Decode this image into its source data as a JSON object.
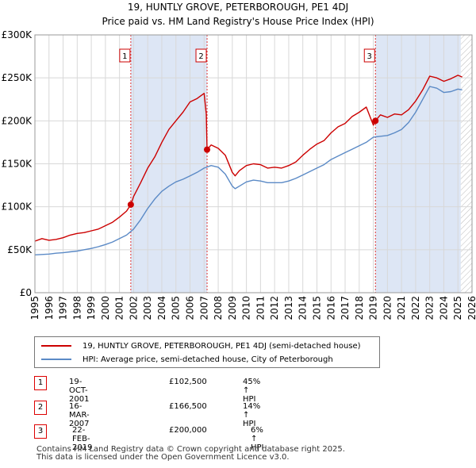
{
  "chart_data": {
    "type": "line",
    "title": "19, HUNTLY GROVE, PETERBOROUGH, PE1 4DJ",
    "subtitle": "Price paid vs. HM Land Registry's House Price Index (HPI)",
    "xlim": [
      1995,
      2026
    ],
    "ylim": [
      0,
      300000
    ],
    "y_ticks": [
      {
        "value": 0,
        "label": "£0"
      },
      {
        "value": 50000,
        "label": "£50K"
      },
      {
        "value": 100000,
        "label": "£100K"
      },
      {
        "value": 150000,
        "label": "£150K"
      },
      {
        "value": 200000,
        "label": "£200K"
      },
      {
        "value": 250000,
        "label": "£250K"
      },
      {
        "value": 300000,
        "label": "£300K"
      }
    ],
    "x_ticks": [
      "1995",
      "1996",
      "1997",
      "1998",
      "1999",
      "2000",
      "2001",
      "2002",
      "2003",
      "2004",
      "2005",
      "2006",
      "2007",
      "2008",
      "2009",
      "2010",
      "2011",
      "2012",
      "2013",
      "2014",
      "2015",
      "2016",
      "2017",
      "2018",
      "2019",
      "2020",
      "2021",
      "2022",
      "2023",
      "2024",
      "2025",
      "2026"
    ],
    "hatch_from": 2025.2,
    "colors": {
      "property": "#cc0000",
      "hpi": "#5b8ac6",
      "shade": "#dde6f5",
      "grid": "#d8d8d8"
    },
    "series": [
      {
        "name": "19, HUNTLY GROVE, PETERBOROUGH, PE1 4DJ (semi-detached house)",
        "color": "#cc0000",
        "x": [
          1995.0,
          1995.5,
          1996.0,
          1996.5,
          1997.0,
          1997.5,
          1998.0,
          1998.5,
          1999.0,
          1999.5,
          2000.0,
          2000.5,
          2001.0,
          2001.5,
          2001.8,
          2002.0,
          2002.5,
          2003.0,
          2003.5,
          2004.0,
          2004.5,
          2005.0,
          2005.5,
          2006.0,
          2006.5,
          2007.0,
          2007.15,
          2007.21,
          2007.5,
          2008.0,
          2008.5,
          2009.0,
          2009.2,
          2009.5,
          2010.0,
          2010.5,
          2011.0,
          2011.5,
          2012.0,
          2012.5,
          2013.0,
          2013.5,
          2014.0,
          2014.5,
          2015.0,
          2015.5,
          2016.0,
          2016.5,
          2017.0,
          2017.5,
          2018.0,
          2018.5,
          2019.0,
          2019.15,
          2019.5,
          2020.0,
          2020.5,
          2021.0,
          2021.5,
          2022.0,
          2022.5,
          2023.0,
          2023.5,
          2024.0,
          2024.5,
          2025.0,
          2025.3
        ],
        "values": [
          60000,
          63000,
          61000,
          62000,
          64000,
          67000,
          69000,
          70000,
          72000,
          74000,
          78000,
          82000,
          88000,
          95000,
          102500,
          112000,
          128000,
          145000,
          158000,
          175000,
          190000,
          200000,
          210000,
          222000,
          226000,
          232000,
          208000,
          166500,
          172000,
          168000,
          160000,
          140000,
          136000,
          142000,
          148000,
          150000,
          149000,
          145000,
          146000,
          145000,
          148000,
          152000,
          160000,
          167000,
          173000,
          177000,
          186000,
          193000,
          197000,
          205000,
          210000,
          216000,
          195000,
          200000,
          207000,
          204000,
          208000,
          207000,
          213000,
          223000,
          236000,
          252000,
          250000,
          246000,
          249000,
          253000,
          251000
        ]
      },
      {
        "name": "HPI: Average price, semi-detached house, City of Peterborough",
        "color": "#5b8ac6",
        "x": [
          1995.0,
          1995.5,
          1996.0,
          1996.5,
          1997.0,
          1997.5,
          1998.0,
          1998.5,
          1999.0,
          1999.5,
          2000.0,
          2000.5,
          2001.0,
          2001.5,
          2002.0,
          2002.5,
          2003.0,
          2003.5,
          2004.0,
          2004.5,
          2005.0,
          2005.5,
          2006.0,
          2006.5,
          2007.0,
          2007.5,
          2008.0,
          2008.5,
          2009.0,
          2009.2,
          2009.5,
          2010.0,
          2010.5,
          2011.0,
          2011.5,
          2012.0,
          2012.5,
          2013.0,
          2013.5,
          2014.0,
          2014.5,
          2015.0,
          2015.5,
          2016.0,
          2016.5,
          2017.0,
          2017.5,
          2018.0,
          2018.5,
          2019.0,
          2019.5,
          2020.0,
          2020.5,
          2021.0,
          2021.5,
          2022.0,
          2022.5,
          2023.0,
          2023.5,
          2024.0,
          2024.5,
          2025.0,
          2025.3
        ],
        "values": [
          44000,
          44500,
          45000,
          46000,
          46500,
          47500,
          48500,
          50000,
          51500,
          53500,
          56000,
          59000,
          63000,
          67000,
          74000,
          85000,
          98000,
          109000,
          118000,
          124000,
          129000,
          132000,
          136000,
          140000,
          145000,
          148000,
          146000,
          138000,
          124000,
          121000,
          124000,
          129000,
          131000,
          130000,
          128000,
          128000,
          128000,
          130000,
          133000,
          137000,
          141000,
          145000,
          149000,
          155000,
          159000,
          163000,
          167000,
          171000,
          175000,
          181000,
          182000,
          183000,
          186000,
          190000,
          198000,
          210000,
          225000,
          240000,
          238000,
          233000,
          234000,
          237000,
          236000
        ]
      }
    ],
    "sales": [
      {
        "id": "1",
        "x": 2001.8,
        "value": 102500,
        "date": "19-OCT-2001",
        "price": "£102,500",
        "hpi": "45% ↑ HPI"
      },
      {
        "id": "2",
        "x": 2007.21,
        "value": 166500,
        "date": "16-MAR-2007",
        "price": "£166,500",
        "hpi": "14% ↑ HPI"
      },
      {
        "id": "3",
        "x": 2019.15,
        "value": 200000,
        "date": "22-FEB-2019",
        "price": "£200,000",
        "hpi": "6% ↑ HPI"
      }
    ]
  },
  "legend": {
    "property_label": "19, HUNTLY GROVE, PETERBOROUGH, PE1 4DJ (semi-detached house)",
    "hpi_label": "HPI: Average price, semi-detached house, City of Peterborough"
  },
  "footer": {
    "line1": "Contains HM Land Registry data © Crown copyright and database right 2025.",
    "line2": "This data is licensed under the Open Government Licence v3.0."
  }
}
